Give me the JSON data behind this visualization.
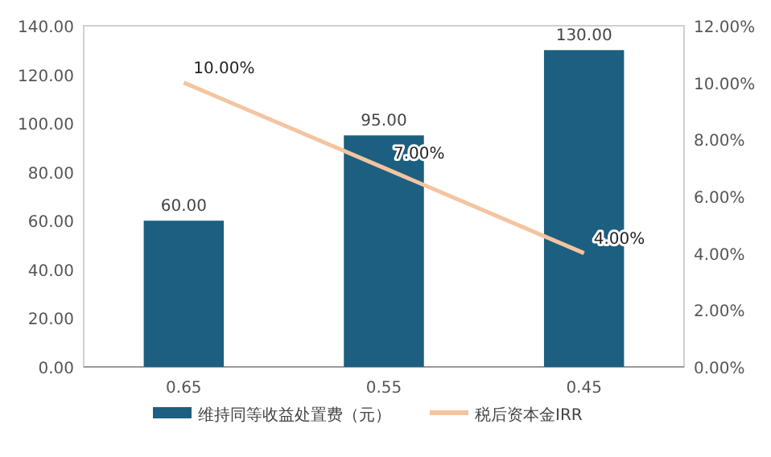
{
  "chart_data": {
    "type": "bar",
    "categories": [
      "0.65",
      "0.55",
      "0.45"
    ],
    "series": [
      {
        "name": "维持同等收益处置费（元）",
        "color": "#1c5f80",
        "values": [
          60,
          95,
          130
        ],
        "value_labels": [
          "60.00",
          "95.00",
          "130.00"
        ]
      },
      {
        "name": "税后资本金IRR",
        "type": "line",
        "axis": "y2",
        "color": "#f4c4a0",
        "values": [
          10,
          7,
          4
        ],
        "value_labels": [
          "10.00%",
          "7.00%",
          "4.00%"
        ]
      }
    ],
    "ylim": [
      0,
      140
    ],
    "yticks": [
      {
        "value": 0,
        "label": "0.00"
      },
      {
        "value": 20,
        "label": "20.00"
      },
      {
        "value": 40,
        "label": "40.00"
      },
      {
        "value": 60,
        "label": "60.00"
      },
      {
        "value": 80,
        "label": "80.00"
      },
      {
        "value": 100,
        "label": "100.00"
      },
      {
        "value": 120,
        "label": "120.00"
      },
      {
        "value": 140,
        "label": "140.00"
      }
    ],
    "y2lim": [
      0,
      12
    ],
    "y2ticks": [
      {
        "value": 0,
        "label": "0.00%"
      },
      {
        "value": 2,
        "label": "2.00%"
      },
      {
        "value": 4,
        "label": "4.00%"
      },
      {
        "value": 6,
        "label": "6.00%"
      },
      {
        "value": 8,
        "label": "8.00%"
      },
      {
        "value": 10,
        "label": "10.00%"
      },
      {
        "value": 12,
        "label": "12.00%"
      }
    ],
    "legend": "bottom",
    "grid": false
  }
}
